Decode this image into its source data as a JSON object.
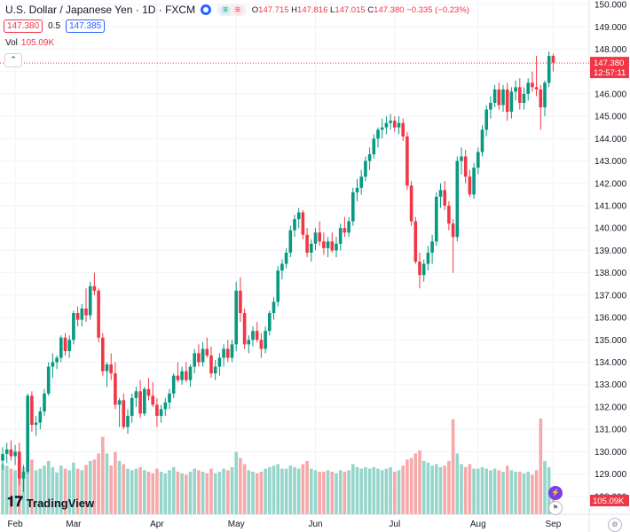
{
  "header": {
    "title": "U.S. Dollar / Japanese Yen · 1D · FXCM",
    "ohlc": {
      "o_label": "O",
      "o": "147.715",
      "h_label": "H",
      "h": "147.816",
      "l_label": "L",
      "l": "147.015",
      "c_label": "C",
      "c": "147.380",
      "change": "−0.335 (−0.23%)"
    },
    "sell_price": "147.380",
    "spread": "0.5",
    "buy_price": "147.385",
    "vol_label": "Vol",
    "vol_value": "105.09K",
    "last_price_label": "147.380",
    "countdown": "12:57:11",
    "vol_axis_label": "105.09K",
    "brand": "TradingView"
  },
  "colors": {
    "up": "#089981",
    "down": "#f23645",
    "up_vol": "#95d5ca",
    "down_vol": "#f7a9a9",
    "grid": "#f0f3fa"
  },
  "chart_data": {
    "type": "candlestick",
    "title": "U.S. Dollar / Japanese Yen · 1D · FXCM",
    "y_ticks": [
      128,
      129,
      130,
      131,
      132,
      133,
      134,
      135,
      136,
      137,
      138,
      139,
      140,
      141,
      142,
      143,
      144,
      145,
      146,
      147,
      148,
      149,
      150
    ],
    "ylim": [
      127.2,
      150.2
    ],
    "x_ticks": [
      "Feb",
      "Mar",
      "Apr",
      "May",
      "Jun",
      "Jul",
      "Aug",
      "Sep"
    ],
    "x_tick_index": [
      3,
      17,
      37,
      56,
      75,
      94,
      114,
      132
    ],
    "last_price": 147.38,
    "candles": [
      [
        129.6,
        130.2,
        129.2,
        129.9,
        66
      ],
      [
        129.9,
        130.4,
        129.5,
        130.1,
        64
      ],
      [
        130.1,
        130.5,
        129.6,
        129.8,
        60
      ],
      [
        129.8,
        130.3,
        129.4,
        130.0,
        58
      ],
      [
        130.0,
        130.4,
        128.5,
        128.8,
        70
      ],
      [
        128.8,
        129.4,
        128.2,
        129.1,
        62
      ],
      [
        129.1,
        132.6,
        129.0,
        132.5,
        95
      ],
      [
        132.5,
        132.7,
        130.9,
        131.2,
        72
      ],
      [
        131.2,
        131.6,
        130.7,
        131.3,
        58
      ],
      [
        131.3,
        132.0,
        131.0,
        131.8,
        60
      ],
      [
        131.8,
        132.8,
        131.6,
        132.6,
        64
      ],
      [
        132.6,
        134.0,
        132.5,
        133.8,
        70
      ],
      [
        133.8,
        134.4,
        133.3,
        134.0,
        62
      ],
      [
        134.0,
        134.3,
        133.7,
        134.2,
        55
      ],
      [
        134.2,
        135.2,
        134.0,
        135.1,
        64
      ],
      [
        135.1,
        135.3,
        134.3,
        134.5,
        60
      ],
      [
        134.5,
        135.2,
        134.2,
        135.0,
        58
      ],
      [
        135.0,
        136.3,
        134.8,
        136.2,
        68
      ],
      [
        136.2,
        136.5,
        135.6,
        135.9,
        60
      ],
      [
        135.9,
        136.6,
        135.6,
        136.4,
        58
      ],
      [
        136.4,
        137.3,
        135.8,
        136.1,
        65
      ],
      [
        136.1,
        137.6,
        135.9,
        137.4,
        70
      ],
      [
        137.4,
        138.0,
        137.0,
        137.2,
        72
      ],
      [
        137.2,
        137.3,
        134.9,
        135.1,
        80
      ],
      [
        135.1,
        135.3,
        133.4,
        133.6,
        102
      ],
      [
        133.6,
        134.0,
        132.9,
        133.9,
        80
      ],
      [
        133.9,
        134.4,
        133.2,
        133.5,
        64
      ],
      [
        133.5,
        134.0,
        131.9,
        132.1,
        82
      ],
      [
        132.1,
        132.4,
        131.1,
        132.3,
        70
      ],
      [
        132.3,
        132.6,
        131.0,
        131.1,
        66
      ],
      [
        131.1,
        131.9,
        130.8,
        131.6,
        60
      ],
      [
        131.6,
        132.6,
        131.3,
        132.4,
        58
      ],
      [
        132.4,
        132.9,
        132.0,
        132.7,
        60
      ],
      [
        132.7,
        133.2,
        131.5,
        131.7,
        62
      ],
      [
        131.7,
        132.9,
        131.6,
        132.8,
        58
      ],
      [
        132.8,
        133.3,
        132.3,
        132.5,
        56
      ],
      [
        132.5,
        133.1,
        132.0,
        132.1,
        54
      ],
      [
        132.1,
        132.4,
        131.1,
        131.6,
        60
      ],
      [
        131.6,
        132.1,
        131.3,
        131.9,
        56
      ],
      [
        131.9,
        132.4,
        131.6,
        132.2,
        54
      ],
      [
        132.2,
        132.8,
        131.9,
        132.6,
        58
      ],
      [
        132.6,
        133.5,
        132.4,
        133.4,
        62
      ],
      [
        133.4,
        134.0,
        133.1,
        133.2,
        56
      ],
      [
        133.2,
        133.8,
        133.0,
        133.6,
        54
      ],
      [
        133.6,
        134.0,
        133.1,
        133.2,
        52
      ],
      [
        133.2,
        133.9,
        132.9,
        133.8,
        56
      ],
      [
        133.8,
        134.6,
        133.5,
        134.4,
        60
      ],
      [
        134.4,
        134.8,
        133.8,
        134.0,
        58
      ],
      [
        134.0,
        134.9,
        133.8,
        134.6,
        56
      ],
      [
        134.6,
        135.1,
        134.2,
        134.3,
        54
      ],
      [
        134.3,
        134.7,
        133.3,
        133.5,
        60
      ],
      [
        133.5,
        134.1,
        133.2,
        133.8,
        54
      ],
      [
        133.8,
        134.4,
        133.4,
        134.2,
        56
      ],
      [
        134.2,
        134.8,
        133.8,
        134.6,
        60
      ],
      [
        134.6,
        135.0,
        134.0,
        134.2,
        58
      ],
      [
        134.2,
        135.0,
        134.0,
        134.8,
        62
      ],
      [
        134.8,
        137.6,
        134.5,
        137.2,
        82
      ],
      [
        137.2,
        137.8,
        135.8,
        136.2,
        74
      ],
      [
        136.2,
        136.4,
        134.6,
        134.8,
        66
      ],
      [
        134.8,
        135.2,
        134.4,
        135.0,
        58
      ],
      [
        135.0,
        135.6,
        134.7,
        135.4,
        56
      ],
      [
        135.4,
        135.8,
        134.9,
        135.0,
        54
      ],
      [
        135.0,
        135.3,
        134.2,
        134.6,
        56
      ],
      [
        134.6,
        135.6,
        134.4,
        135.4,
        60
      ],
      [
        135.4,
        136.3,
        135.2,
        136.2,
        62
      ],
      [
        136.2,
        136.9,
        135.9,
        136.7,
        64
      ],
      [
        136.7,
        138.3,
        136.5,
        138.1,
        66
      ],
      [
        138.1,
        138.6,
        137.7,
        138.4,
        60
      ],
      [
        138.4,
        139.1,
        138.2,
        138.9,
        60
      ],
      [
        138.9,
        140.1,
        138.7,
        139.9,
        64
      ],
      [
        139.9,
        140.6,
        139.6,
        140.4,
        62
      ],
      [
        140.4,
        140.9,
        140.0,
        140.7,
        60
      ],
      [
        140.7,
        140.8,
        139.5,
        139.7,
        66
      ],
      [
        139.7,
        140.0,
        138.7,
        138.9,
        70
      ],
      [
        138.9,
        139.5,
        138.5,
        139.3,
        60
      ],
      [
        139.3,
        140.0,
        139.0,
        139.8,
        58
      ],
      [
        139.8,
        140.3,
        139.2,
        139.4,
        56
      ],
      [
        139.4,
        139.8,
        138.8,
        139.1,
        56
      ],
      [
        139.1,
        139.6,
        138.7,
        139.4,
        58
      ],
      [
        139.4,
        139.8,
        138.9,
        139.0,
        56
      ],
      [
        139.0,
        139.6,
        138.7,
        139.3,
        54
      ],
      [
        139.3,
        140.2,
        139.0,
        140.0,
        58
      ],
      [
        140.0,
        140.5,
        139.6,
        139.8,
        56
      ],
      [
        139.8,
        140.5,
        139.6,
        140.3,
        58
      ],
      [
        140.3,
        141.8,
        140.1,
        141.6,
        66
      ],
      [
        141.6,
        142.2,
        141.2,
        141.8,
        62
      ],
      [
        141.8,
        142.6,
        141.5,
        142.3,
        60
      ],
      [
        142.3,
        143.2,
        142.1,
        143.0,
        62
      ],
      [
        143.0,
        143.6,
        142.6,
        143.3,
        60
      ],
      [
        143.3,
        144.2,
        143.1,
        144.0,
        62
      ],
      [
        144.0,
        144.5,
        143.6,
        144.4,
        60
      ],
      [
        144.4,
        144.9,
        144.0,
        144.5,
        58
      ],
      [
        144.5,
        145.0,
        144.2,
        144.7,
        60
      ],
      [
        144.7,
        145.1,
        144.4,
        144.8,
        62
      ],
      [
        144.8,
        145.0,
        144.3,
        144.5,
        56
      ],
      [
        144.5,
        145.0,
        144.2,
        144.7,
        58
      ],
      [
        144.7,
        144.9,
        143.9,
        144.1,
        64
      ],
      [
        144.1,
        144.3,
        141.7,
        141.9,
        72
      ],
      [
        141.9,
        142.1,
        140.1,
        140.3,
        74
      ],
      [
        140.3,
        140.5,
        138.4,
        138.5,
        80
      ],
      [
        138.5,
        138.9,
        137.3,
        137.9,
        84
      ],
      [
        137.9,
        138.6,
        137.6,
        138.4,
        70
      ],
      [
        138.4,
        139.2,
        138.1,
        138.9,
        68
      ],
      [
        138.9,
        139.7,
        138.4,
        139.4,
        64
      ],
      [
        139.4,
        141.6,
        139.2,
        141.4,
        66
      ],
      [
        141.4,
        142.0,
        140.9,
        141.7,
        62
      ],
      [
        141.7,
        142.1,
        140.8,
        141.0,
        64
      ],
      [
        141.0,
        141.2,
        139.9,
        140.2,
        70
      ],
      [
        140.2,
        140.4,
        138.0,
        139.6,
        125
      ],
      [
        139.6,
        143.2,
        139.4,
        143.0,
        80
      ],
      [
        143.0,
        143.6,
        142.4,
        143.2,
        66
      ],
      [
        143.2,
        143.5,
        142.0,
        142.3,
        62
      ],
      [
        142.3,
        142.6,
        141.4,
        141.5,
        66
      ],
      [
        141.5,
        142.9,
        141.3,
        142.7,
        60
      ],
      [
        142.7,
        143.6,
        142.4,
        143.4,
        60
      ],
      [
        143.4,
        144.6,
        143.2,
        144.4,
        62
      ],
      [
        144.4,
        145.5,
        144.1,
        145.3,
        60
      ],
      [
        145.3,
        145.9,
        144.9,
        145.6,
        58
      ],
      [
        145.6,
        146.4,
        145.4,
        146.2,
        60
      ],
      [
        146.2,
        146.5,
        145.3,
        145.5,
        58
      ],
      [
        145.5,
        146.4,
        145.2,
        146.2,
        56
      ],
      [
        146.2,
        146.5,
        144.8,
        145.2,
        64
      ],
      [
        145.2,
        146.3,
        144.9,
        146.1,
        58
      ],
      [
        146.1,
        146.6,
        145.7,
        146.3,
        56
      ],
      [
        146.3,
        146.7,
        145.3,
        145.6,
        56
      ],
      [
        145.6,
        146.3,
        145.3,
        146.0,
        54
      ],
      [
        146.0,
        146.7,
        145.7,
        146.5,
        56
      ],
      [
        146.5,
        147.0,
        146.1,
        146.3,
        52
      ],
      [
        146.3,
        147.7,
        145.9,
        146.2,
        58
      ],
      [
        146.2,
        146.4,
        144.4,
        145.4,
        126
      ],
      [
        145.4,
        146.6,
        145.0,
        146.5,
        70
      ],
      [
        146.5,
        147.9,
        146.3,
        147.7,
        62
      ],
      [
        147.7,
        147.8,
        147.0,
        147.4,
        30
      ]
    ]
  }
}
